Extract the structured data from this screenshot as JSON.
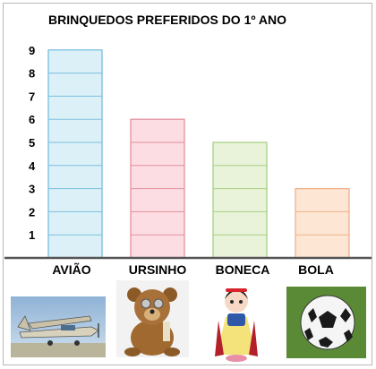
{
  "chart_data": {
    "type": "bar",
    "title": "BRINQUEDOS PREFERIDOS DO 1º  ANO",
    "xlabel": "",
    "ylabel": "",
    "categories": [
      "AVIÃO",
      "URSINHO",
      "BONECA",
      "BOLA"
    ],
    "values": [
      9,
      6,
      5,
      3
    ],
    "y_ticks": [
      "1",
      "2",
      "3",
      "4",
      "5",
      "6",
      "7",
      "8",
      "9"
    ],
    "ylim": [
      0,
      9
    ],
    "grid": false,
    "bar_fills": [
      "#dcf0f8",
      "#fbdde3",
      "#e8f3da",
      "#fde6d4"
    ],
    "bar_strokes": [
      "#7ac0dc",
      "#e3909e",
      "#a9cf82",
      "#efb08a"
    ]
  },
  "pictures": [
    {
      "name": "airplane-photo"
    },
    {
      "name": "teddy-bear-photo"
    },
    {
      "name": "doll-photo"
    },
    {
      "name": "soccer-ball-photo"
    }
  ]
}
